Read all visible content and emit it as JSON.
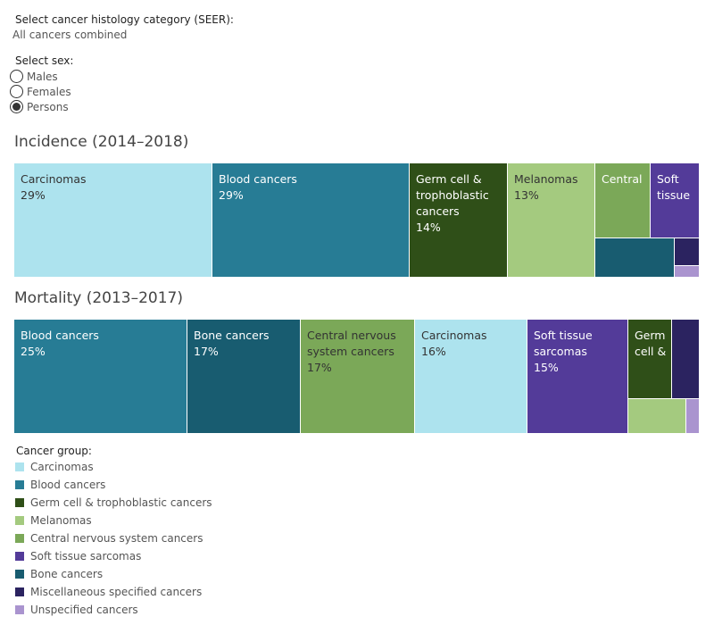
{
  "filters": {
    "histology_title": "Select cancer histology category (SEER):",
    "histology_value": "All cancers combined",
    "sex_title": "Select sex:",
    "sex_options": [
      {
        "label": "Males",
        "checked": false
      },
      {
        "label": "Females",
        "checked": false
      },
      {
        "label": "Persons",
        "checked": true
      }
    ]
  },
  "legend": {
    "title": "Cancer group:",
    "items": [
      {
        "label": "Carcinomas",
        "color": "#ade3ee"
      },
      {
        "label": "Blood cancers",
        "color": "#277c95"
      },
      {
        "label": "Germ cell & trophoblastic cancers",
        "color": "#2f4f18"
      },
      {
        "label": "Melanomas",
        "color": "#a4ca7f"
      },
      {
        "label": "Central nervous system cancers",
        "color": "#7ba858"
      },
      {
        "label": "Soft tissue sarcomas",
        "color": "#533b99"
      },
      {
        "label": "Bone cancers",
        "color": "#185c70"
      },
      {
        "label": "Miscellaneous specified cancers",
        "color": "#2b2360"
      },
      {
        "label": "Unspecified cancers",
        "color": "#aa94cf"
      }
    ]
  },
  "chart_data": [
    {
      "type": "treemap",
      "title": "Incidence (2014–2018)",
      "tiles": [
        {
          "group": "Carcinomas",
          "label": "Carcinomas",
          "value_label": "29%",
          "value": 29,
          "color": "#ade3ee",
          "text_color": "#333333"
        },
        {
          "group": "Blood cancers",
          "label": "Blood cancers",
          "value_label": "29%",
          "value": 29,
          "color": "#277c95",
          "text_color": "#ffffff"
        },
        {
          "group": "Germ cell & trophoblastic cancers",
          "label": "Germ cell &\ntrophoblastic\ncancers",
          "value_label": "14%",
          "value": 14,
          "color": "#2f4f18",
          "text_color": "#ffffff"
        },
        {
          "group": "Melanomas",
          "label": "Melanomas",
          "value_label": "13%",
          "value": 13,
          "color": "#a4ca7f",
          "text_color": "#333333"
        },
        {
          "group": "Central nervous system cancers",
          "label": "Central",
          "value_label": "",
          "value": 6,
          "color": "#7ba858",
          "text_color": "#ffffff"
        },
        {
          "group": "Soft tissue sarcomas",
          "label": "Soft\ntissue",
          "value_label": "",
          "value": 4,
          "color": "#533b99",
          "text_color": "#ffffff"
        },
        {
          "group": "Bone cancers",
          "label": "",
          "value_label": "",
          "value": 3.5,
          "color": "#185c70",
          "text_color": "#ffffff"
        },
        {
          "group": "Miscellaneous specified cancers",
          "label": "",
          "value_label": "",
          "value": 1,
          "color": "#2b2360",
          "text_color": "#ffffff"
        },
        {
          "group": "Unspecified cancers",
          "label": "",
          "value_label": "",
          "value": 0.5,
          "color": "#aa94cf",
          "text_color": "#ffffff"
        }
      ]
    },
    {
      "type": "treemap",
      "title": "Mortality (2013–2017)",
      "tiles": [
        {
          "group": "Blood cancers",
          "label": "Blood cancers",
          "value_label": "25%",
          "value": 25,
          "color": "#277c95",
          "text_color": "#ffffff"
        },
        {
          "group": "Bone cancers",
          "label": "Bone cancers",
          "value_label": "17%",
          "value": 17,
          "color": "#185c70",
          "text_color": "#ffffff"
        },
        {
          "group": "Central nervous system cancers",
          "label": "Central nervous\nsystem cancers",
          "value_label": "17%",
          "value": 17,
          "color": "#7ba858",
          "text_color": "#333333"
        },
        {
          "group": "Carcinomas",
          "label": "Carcinomas",
          "value_label": "16%",
          "value": 16,
          "color": "#ade3ee",
          "text_color": "#333333"
        },
        {
          "group": "Soft tissue sarcomas",
          "label": "Soft tissue\nsarcomas",
          "value_label": "15%",
          "value": 15,
          "color": "#533b99",
          "text_color": "#ffffff"
        },
        {
          "group": "Germ cell & trophoblastic cancers",
          "label": "Germ\ncell &",
          "value_label": "",
          "value": 4,
          "color": "#2f4f18",
          "text_color": "#ffffff"
        },
        {
          "group": "Miscellaneous specified cancers",
          "label": "",
          "value_label": "",
          "value": 3,
          "color": "#2b2360",
          "text_color": "#ffffff"
        },
        {
          "group": "Melanomas",
          "label": "",
          "value_label": "",
          "value": 2.5,
          "color": "#a4ca7f",
          "text_color": "#ffffff"
        },
        {
          "group": "Unspecified cancers",
          "label": "",
          "value_label": "",
          "value": 0.5,
          "color": "#aa94cf",
          "text_color": "#ffffff"
        }
      ]
    }
  ]
}
